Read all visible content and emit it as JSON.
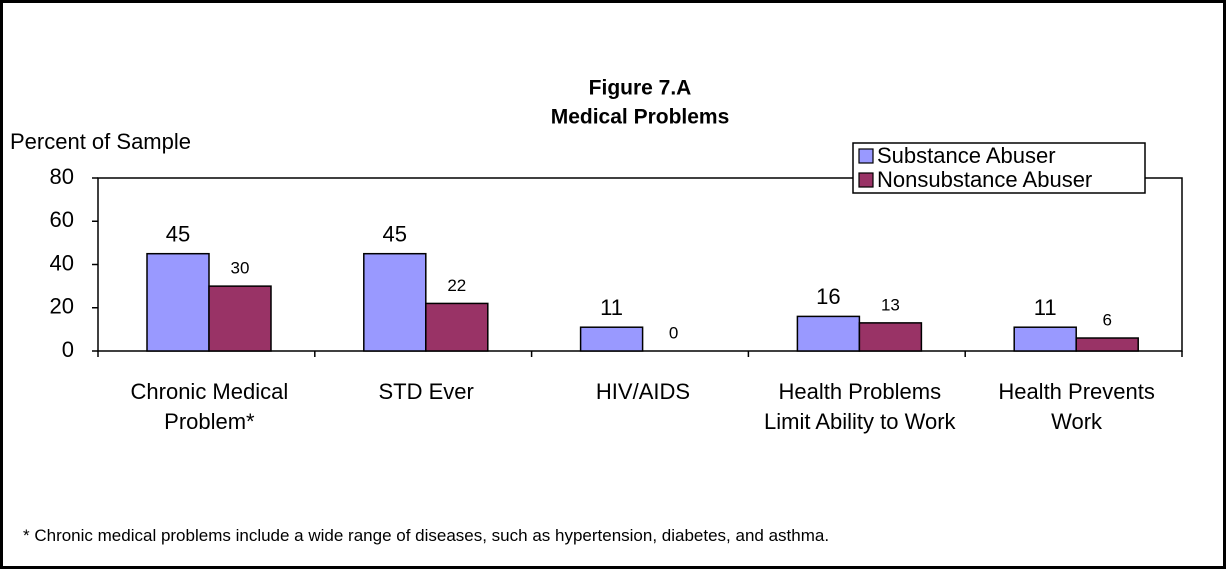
{
  "chart_data": {
    "type": "bar",
    "title": "Figure 7.A",
    "subtitle": "Medical Problems",
    "y_label": "Percent of Sample",
    "categories": [
      "Chronic Medical Problem*",
      "STD Ever",
      "HIV/AIDS",
      "Health Problems Limit Ability to Work",
      "Health Prevents Work"
    ],
    "series": [
      {
        "name": "Substance Abuser",
        "color": "#9999ff",
        "values": [
          45,
          45,
          11,
          16,
          11
        ]
      },
      {
        "name": "Nonsubstance Abuser",
        "color": "#993366",
        "values": [
          30,
          22,
          0,
          13,
          6
        ]
      }
    ],
    "ylim": [
      0,
      80
    ],
    "yticks": [
      0,
      20,
      40,
      60,
      80
    ],
    "legend": "top-right",
    "note": "* Chronic medical problems include a wide range of diseases, such as hypertension, diabetes, and asthma."
  }
}
